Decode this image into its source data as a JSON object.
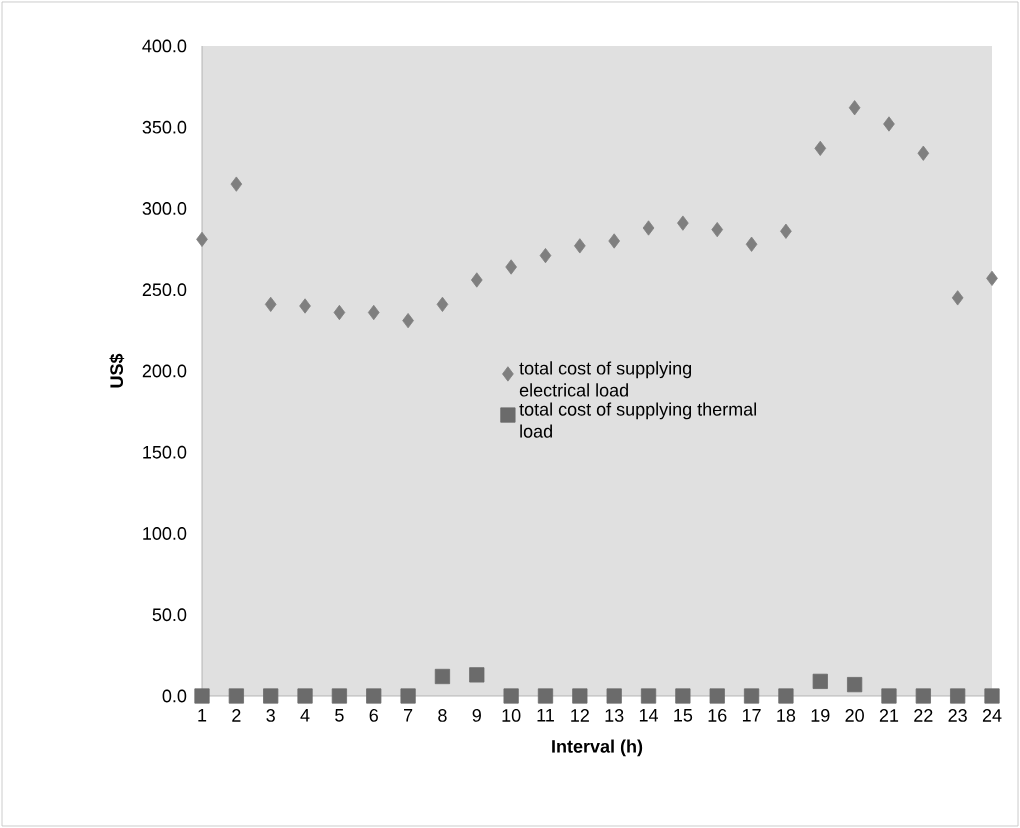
{
  "chart_data": {
    "type": "scatter",
    "xlabel": "Interval (h)",
    "ylabel": "US$",
    "x": [
      1,
      2,
      3,
      4,
      5,
      6,
      7,
      8,
      9,
      10,
      11,
      12,
      13,
      14,
      15,
      16,
      17,
      18,
      19,
      20,
      21,
      22,
      23,
      24
    ],
    "series": [
      {
        "name": "total cost of supplying electrical load",
        "color": "#7f7f7f",
        "marker": "diamond",
        "values": [
          281,
          315,
          241,
          240,
          236,
          236,
          231,
          241,
          256,
          264,
          271,
          277,
          280,
          288,
          291,
          287,
          278,
          286,
          337,
          362,
          352,
          334,
          245,
          257
        ]
      },
      {
        "name": "total cost of supplying thermal load",
        "color": "#6b6b6b",
        "marker": "square",
        "values": [
          0,
          0,
          0,
          0,
          0,
          0,
          0,
          12,
          13,
          0,
          0,
          0,
          0,
          0,
          0,
          0,
          0,
          0,
          9,
          7,
          0,
          0,
          0,
          0
        ]
      }
    ],
    "xlim": [
      1,
      24
    ],
    "xticks": [
      1,
      2,
      3,
      4,
      5,
      6,
      7,
      8,
      9,
      10,
      11,
      12,
      13,
      14,
      15,
      16,
      17,
      18,
      19,
      20,
      21,
      22,
      23,
      24
    ],
    "ylim": [
      0,
      400
    ],
    "yticks": [
      {
        "value": 0,
        "label": "0.0"
      },
      {
        "value": 50,
        "label": "50.0"
      },
      {
        "value": 100,
        "label": "100.0"
      },
      {
        "value": 150,
        "label": "150.0"
      },
      {
        "value": 200,
        "label": "200.0"
      },
      {
        "value": 250,
        "label": "250.0"
      },
      {
        "value": 300,
        "label": "300.0"
      },
      {
        "value": 350,
        "label": "350.0"
      },
      {
        "value": 400,
        "label": "400.0"
      }
    ],
    "legend": "center",
    "grid": false
  }
}
